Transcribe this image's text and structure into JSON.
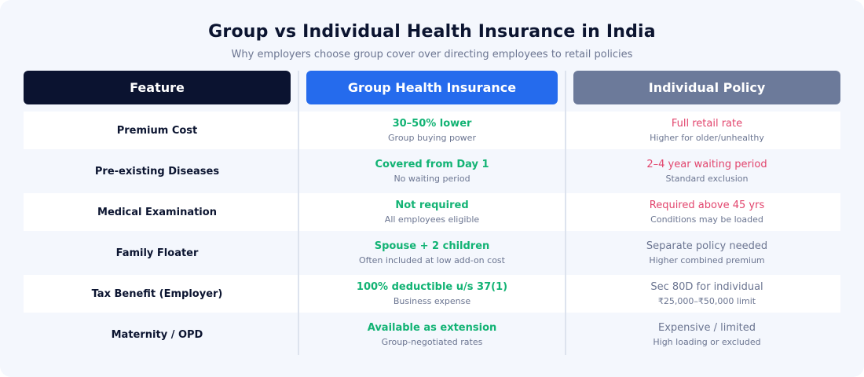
{
  "title": "Group vs Individual Health Insurance in India",
  "subtitle": "Why employers choose group cover over directing employees to retail policies",
  "headers": {
    "feature": "Feature",
    "group": "Group Health Insurance",
    "individual": "Individual Policy"
  },
  "colors": {
    "header_feature": "#0b1330",
    "header_group": "#256bed",
    "header_individual": "#6c7a9a",
    "good": "#12b374",
    "bad": "#e2456d",
    "neutral": "#6b7591"
  },
  "rows": [
    {
      "feature": "Premium Cost",
      "group_main": "30–50% lower",
      "group_sub": "Group buying power",
      "individual_main": "Full retail rate",
      "individual_sub": "Higher for older/unhealthy"
    },
    {
      "feature": "Pre-existing Diseases",
      "group_main": "Covered from Day 1",
      "group_sub": "No waiting period",
      "individual_main": "2–4 year waiting period",
      "individual_sub": "Standard exclusion"
    },
    {
      "feature": "Medical Examination",
      "group_main": "Not required",
      "group_sub": "All employees eligible",
      "individual_main": "Required above 45 yrs",
      "individual_sub": "Conditions may be loaded"
    },
    {
      "feature": "Family Floater",
      "group_main": "Spouse + 2 children",
      "group_sub": "Often included at low add-on cost",
      "individual_main": "Separate policy needed",
      "individual_sub": "Higher combined premium"
    },
    {
      "feature": "Tax Benefit (Employer)",
      "group_main": "100% deductible u/s 37(1)",
      "group_sub": "Business expense",
      "individual_main": "Sec 80D for individual",
      "individual_sub": "₹25,000–₹50,000 limit"
    },
    {
      "feature": "Maternity / OPD",
      "group_main": "Available as extension",
      "group_sub": "Group-negotiated rates",
      "individual_main": "Expensive / limited",
      "individual_sub": "High loading or excluded"
    }
  ]
}
